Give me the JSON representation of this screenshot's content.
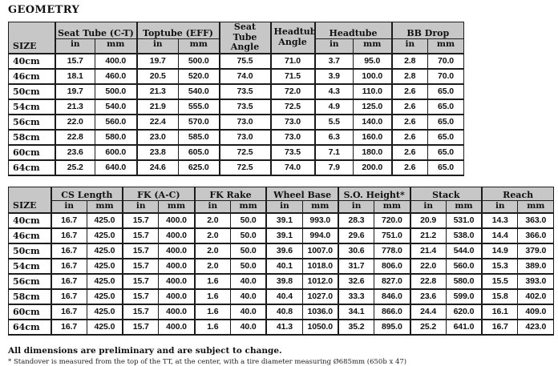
{
  "page_title": "GEOMETRY",
  "colors": {
    "header_bg": "#c7c7c7",
    "border": "#1c1c1c",
    "text": "#111111"
  },
  "table1": {
    "size_header": "SIZE",
    "groups": [
      {
        "label": "Seat Tube (C-T)",
        "cols": [
          "in",
          "mm"
        ]
      },
      {
        "label": "Toptube (EFF)",
        "cols": [
          "in",
          "mm"
        ]
      },
      {
        "label": "Seat Tube Angle",
        "cols": []
      },
      {
        "label": "Headtube Angle",
        "cols": []
      },
      {
        "label": "Headtube",
        "cols": [
          "in",
          "mm"
        ]
      },
      {
        "label": "BB Drop",
        "cols": [
          "in",
          "mm"
        ]
      }
    ],
    "rows": [
      {
        "size": "40cm",
        "values": [
          "15.7",
          "400.0",
          "19.7",
          "500.0",
          "75.5",
          "71.0",
          "3.7",
          "95.0",
          "2.8",
          "70.0"
        ]
      },
      {
        "size": "46cm",
        "values": [
          "18.1",
          "460.0",
          "20.5",
          "520.0",
          "74.0",
          "71.5",
          "3.9",
          "100.0",
          "2.8",
          "70.0"
        ]
      },
      {
        "size": "50cm",
        "values": [
          "19.7",
          "500.0",
          "21.3",
          "540.0",
          "73.5",
          "72.0",
          "4.3",
          "110.0",
          "2.6",
          "65.0"
        ]
      },
      {
        "size": "54cm",
        "values": [
          "21.3",
          "540.0",
          "21.9",
          "555.0",
          "73.5",
          "72.5",
          "4.9",
          "125.0",
          "2.6",
          "65.0"
        ]
      },
      {
        "size": "56cm",
        "values": [
          "22.0",
          "560.0",
          "22.4",
          "570.0",
          "73.0",
          "73.0",
          "5.5",
          "140.0",
          "2.6",
          "65.0"
        ]
      },
      {
        "size": "58cm",
        "values": [
          "22.8",
          "580.0",
          "23.0",
          "585.0",
          "73.0",
          "73.0",
          "6.3",
          "160.0",
          "2.6",
          "65.0"
        ]
      },
      {
        "size": "60cm",
        "values": [
          "23.6",
          "600.0",
          "23.8",
          "605.0",
          "72.5",
          "73.5",
          "7.1",
          "180.0",
          "2.6",
          "65.0"
        ]
      },
      {
        "size": "64cm",
        "values": [
          "25.2",
          "640.0",
          "24.6",
          "625.0",
          "72.5",
          "74.0",
          "7.9",
          "200.0",
          "2.6",
          "65.0"
        ]
      }
    ]
  },
  "table2": {
    "size_header": "SIZE",
    "groups": [
      {
        "label": "CS Length",
        "cols": [
          "in",
          "mm"
        ]
      },
      {
        "label": "FK (A-C)",
        "cols": [
          "in",
          "mm"
        ]
      },
      {
        "label": "FK Rake",
        "cols": [
          "in",
          "mm"
        ]
      },
      {
        "label": "Wheel Base",
        "cols": [
          "in",
          "mm"
        ]
      },
      {
        "label": "S.O. Height*",
        "cols": [
          "in",
          "mm"
        ]
      },
      {
        "label": "Stack",
        "cols": [
          "in",
          "mm"
        ]
      },
      {
        "label": "Reach",
        "cols": [
          "in",
          "mm"
        ]
      }
    ],
    "rows": [
      {
        "size": "40cm",
        "values": [
          "16.7",
          "425.0",
          "15.7",
          "400.0",
          "2.0",
          "50.0",
          "39.1",
          "993.0",
          "28.3",
          "720.0",
          "20.9",
          "531.0",
          "14.3",
          "363.0"
        ]
      },
      {
        "size": "46cm",
        "values": [
          "16.7",
          "425.0",
          "15.7",
          "400.0",
          "2.0",
          "50.0",
          "39.1",
          "994.0",
          "29.6",
          "751.0",
          "21.2",
          "538.0",
          "14.4",
          "366.0"
        ]
      },
      {
        "size": "50cm",
        "values": [
          "16.7",
          "425.0",
          "15.7",
          "400.0",
          "2.0",
          "50.0",
          "39.6",
          "1007.0",
          "30.6",
          "778.0",
          "21.4",
          "544.0",
          "14.9",
          "379.0"
        ]
      },
      {
        "size": "54cm",
        "values": [
          "16.7",
          "425.0",
          "15.7",
          "400.0",
          "2.0",
          "50.0",
          "40.1",
          "1018.0",
          "31.7",
          "806.0",
          "22.0",
          "560.0",
          "15.3",
          "389.0"
        ]
      },
      {
        "size": "56cm",
        "values": [
          "16.7",
          "425.0",
          "15.7",
          "400.0",
          "1.6",
          "40.0",
          "39.8",
          "1012.0",
          "32.6",
          "827.0",
          "22.8",
          "580.0",
          "15.5",
          "393.0"
        ]
      },
      {
        "size": "58cm",
        "values": [
          "16.7",
          "425.0",
          "15.7",
          "400.0",
          "1.6",
          "40.0",
          "40.4",
          "1027.0",
          "33.3",
          "846.0",
          "23.6",
          "599.0",
          "15.8",
          "402.0"
        ]
      },
      {
        "size": "60cm",
        "values": [
          "16.7",
          "425.0",
          "15.7",
          "400.0",
          "1.6",
          "40.0",
          "40.8",
          "1036.0",
          "34.1",
          "866.0",
          "24.4",
          "620.0",
          "16.1",
          "409.0"
        ]
      },
      {
        "size": "64cm",
        "values": [
          "16.7",
          "425.0",
          "15.7",
          "400.0",
          "1.6",
          "40.0",
          "41.3",
          "1050.0",
          "35.2",
          "895.0",
          "25.2",
          "641.0",
          "16.7",
          "423.0"
        ]
      }
    ]
  },
  "footer": {
    "note_bold": "All dimensions are preliminary and are subject to change.",
    "note_small": "* Standover is measured from the top of the TT, at the center, with a tire diameter measuring Ø685mm (650b x 47)"
  }
}
